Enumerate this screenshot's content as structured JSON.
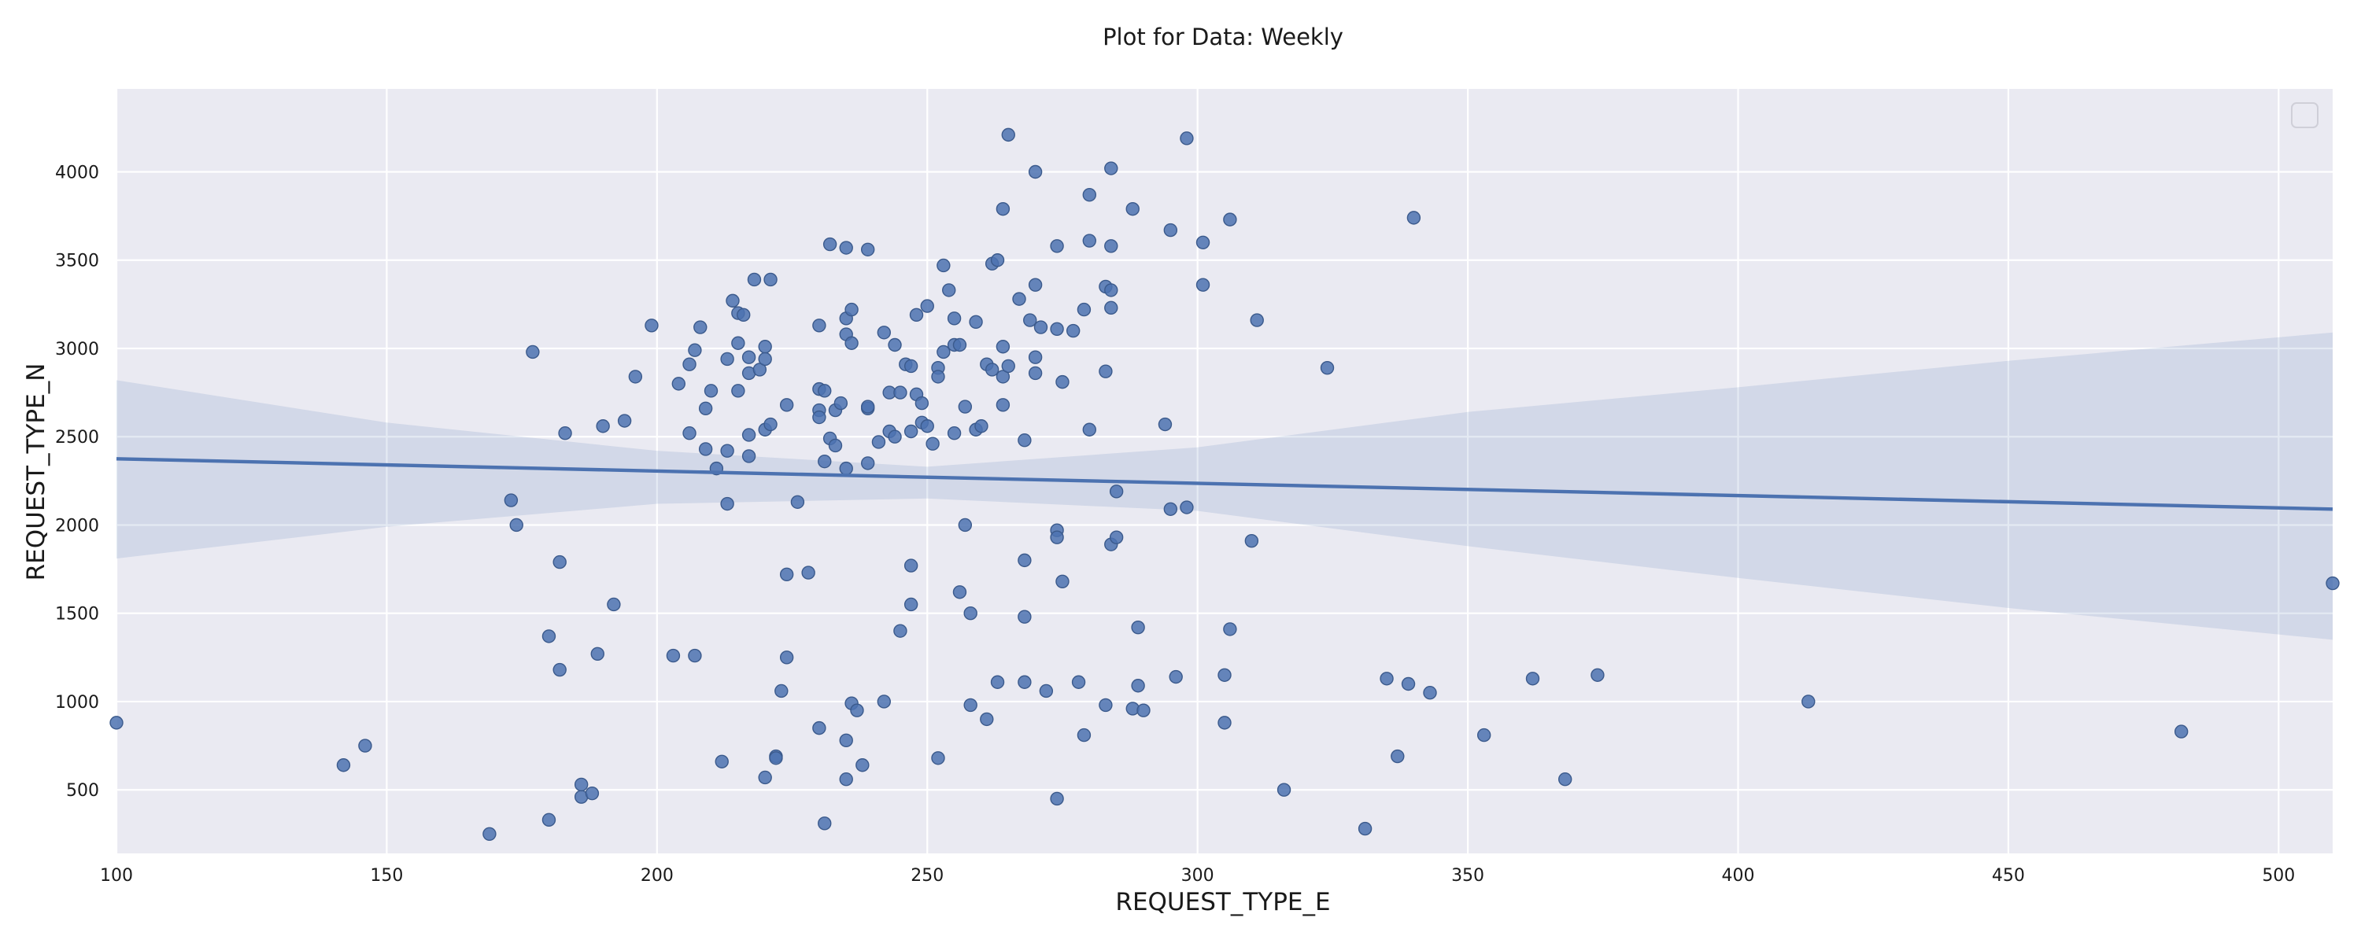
{
  "chart_data": {
    "type": "scatter",
    "title": "Plot for Data: Weekly",
    "xlabel": "REQUEST_TYPE_E",
    "ylabel": "REQUEST_TYPE_N",
    "xlim": [
      100,
      510
    ],
    "ylim": [
      140,
      4470
    ],
    "xticks": [
      100,
      150,
      200,
      250,
      300,
      350,
      400,
      450,
      500
    ],
    "yticks": [
      500,
      1000,
      1500,
      2000,
      2500,
      3000,
      3500,
      4000
    ],
    "grid": true,
    "legend": "top-right (empty)",
    "colors": {
      "points": "#4c72b0",
      "background": "#eaeaf2",
      "grid": "#ffffff"
    },
    "regression": {
      "line": [
        [
          100,
          2375
        ],
        [
          510,
          2090
        ]
      ],
      "ci_upper": [
        [
          100,
          2820
        ],
        [
          150,
          2580
        ],
        [
          200,
          2420
        ],
        [
          250,
          2330
        ],
        [
          300,
          2440
        ],
        [
          350,
          2640
        ],
        [
          400,
          2780
        ],
        [
          450,
          2930
        ],
        [
          510,
          3090
        ]
      ],
      "ci_lower": [
        [
          100,
          1810
        ],
        [
          150,
          1990
        ],
        [
          200,
          2120
        ],
        [
          250,
          2150
        ],
        [
          300,
          2080
        ],
        [
          350,
          1880
        ],
        [
          400,
          1700
        ],
        [
          450,
          1530
        ],
        [
          510,
          1350
        ]
      ]
    },
    "points": [
      [
        100,
        880
      ],
      [
        142,
        640
      ],
      [
        146,
        750
      ],
      [
        169,
        250
      ],
      [
        173,
        2140
      ],
      [
        174,
        2000
      ],
      [
        177,
        2980
      ],
      [
        180,
        1370
      ],
      [
        180,
        330
      ],
      [
        182,
        1790
      ],
      [
        182,
        1180
      ],
      [
        183,
        2520
      ],
      [
        186,
        460
      ],
      [
        186,
        530
      ],
      [
        188,
        480
      ],
      [
        189,
        1270
      ],
      [
        190,
        2560
      ],
      [
        192,
        1550
      ],
      [
        194,
        2590
      ],
      [
        196,
        2840
      ],
      [
        199,
        3130
      ],
      [
        203,
        1260
      ],
      [
        204,
        2800
      ],
      [
        206,
        2520
      ],
      [
        206,
        2910
      ],
      [
        207,
        2990
      ],
      [
        207,
        1260
      ],
      [
        208,
        3120
      ],
      [
        209,
        2430
      ],
      [
        209,
        2660
      ],
      [
        210,
        2760
      ],
      [
        211,
        2320
      ],
      [
        212,
        660
      ],
      [
        213,
        2120
      ],
      [
        213,
        2420
      ],
      [
        213,
        2940
      ],
      [
        214,
        3270
      ],
      [
        215,
        3030
      ],
      [
        215,
        2760
      ],
      [
        215,
        3200
      ],
      [
        216,
        3190
      ],
      [
        217,
        2950
      ],
      [
        217,
        2860
      ],
      [
        217,
        2510
      ],
      [
        217,
        2390
      ],
      [
        218,
        3390
      ],
      [
        219,
        2880
      ],
      [
        220,
        3010
      ],
      [
        220,
        2940
      ],
      [
        220,
        2540
      ],
      [
        220,
        570
      ],
      [
        221,
        3390
      ],
      [
        221,
        2570
      ],
      [
        222,
        690
      ],
      [
        222,
        680
      ],
      [
        223,
        1060
      ],
      [
        224,
        1250
      ],
      [
        224,
        1720
      ],
      [
        224,
        2680
      ],
      [
        226,
        2130
      ],
      [
        228,
        1730
      ],
      [
        230,
        3130
      ],
      [
        230,
        2770
      ],
      [
        230,
        2650
      ],
      [
        230,
        2610
      ],
      [
        230,
        850
      ],
      [
        231,
        2760
      ],
      [
        231,
        2360
      ],
      [
        231,
        310
      ],
      [
        232,
        2490
      ],
      [
        232,
        3590
      ],
      [
        233,
        2650
      ],
      [
        233,
        2450
      ],
      [
        234,
        2690
      ],
      [
        235,
        3570
      ],
      [
        235,
        3080
      ],
      [
        235,
        3170
      ],
      [
        235,
        2320
      ],
      [
        235,
        780
      ],
      [
        235,
        560
      ],
      [
        236,
        3030
      ],
      [
        236,
        3220
      ],
      [
        236,
        990
      ],
      [
        237,
        950
      ],
      [
        238,
        640
      ],
      [
        239,
        3560
      ],
      [
        239,
        2660
      ],
      [
        239,
        2670
      ],
      [
        239,
        2350
      ],
      [
        241,
        2470
      ],
      [
        242,
        3090
      ],
      [
        242,
        1000
      ],
      [
        243,
        2750
      ],
      [
        243,
        2530
      ],
      [
        244,
        3020
      ],
      [
        244,
        2500
      ],
      [
        245,
        2750
      ],
      [
        245,
        1400
      ],
      [
        246,
        2910
      ],
      [
        247,
        2900
      ],
      [
        247,
        2530
      ],
      [
        247,
        1770
      ],
      [
        247,
        1550
      ],
      [
        248,
        3190
      ],
      [
        248,
        2740
      ],
      [
        249,
        2580
      ],
      [
        249,
        2690
      ],
      [
        250,
        3240
      ],
      [
        250,
        2560
      ],
      [
        251,
        2460
      ],
      [
        252,
        2890
      ],
      [
        252,
        2840
      ],
      [
        252,
        680
      ],
      [
        253,
        3470
      ],
      [
        253,
        2980
      ],
      [
        254,
        3330
      ],
      [
        255,
        3170
      ],
      [
        255,
        3020
      ],
      [
        255,
        2520
      ],
      [
        256,
        3020
      ],
      [
        256,
        1620
      ],
      [
        257,
        2670
      ],
      [
        257,
        2000
      ],
      [
        258,
        1500
      ],
      [
        258,
        980
      ],
      [
        259,
        3150
      ],
      [
        259,
        2540
      ],
      [
        260,
        2560
      ],
      [
        261,
        2910
      ],
      [
        261,
        900
      ],
      [
        262,
        3480
      ],
      [
        262,
        2880
      ],
      [
        263,
        3500
      ],
      [
        263,
        1110
      ],
      [
        264,
        3790
      ],
      [
        264,
        3010
      ],
      [
        264,
        2840
      ],
      [
        264,
        2680
      ],
      [
        265,
        4210
      ],
      [
        265,
        2900
      ],
      [
        267,
        3280
      ],
      [
        268,
        2480
      ],
      [
        268,
        1800
      ],
      [
        268,
        1480
      ],
      [
        268,
        1110
      ],
      [
        269,
        3160
      ],
      [
        270,
        4000
      ],
      [
        270,
        3360
      ],
      [
        270,
        2950
      ],
      [
        270,
        2860
      ],
      [
        271,
        3120
      ],
      [
        272,
        1060
      ],
      [
        274,
        3580
      ],
      [
        274,
        3110
      ],
      [
        274,
        1970
      ],
      [
        274,
        1930
      ],
      [
        274,
        450
      ],
      [
        275,
        2810
      ],
      [
        275,
        1680
      ],
      [
        277,
        3100
      ],
      [
        278,
        1110
      ],
      [
        279,
        3220
      ],
      [
        279,
        810
      ],
      [
        280,
        3870
      ],
      [
        280,
        3610
      ],
      [
        280,
        2540
      ],
      [
        283,
        3350
      ],
      [
        283,
        2870
      ],
      [
        283,
        980
      ],
      [
        284,
        4020
      ],
      [
        284,
        3580
      ],
      [
        284,
        3330
      ],
      [
        284,
        3230
      ],
      [
        284,
        1890
      ],
      [
        285,
        2190
      ],
      [
        285,
        1930
      ],
      [
        288,
        3790
      ],
      [
        288,
        960
      ],
      [
        289,
        1420
      ],
      [
        289,
        1090
      ],
      [
        290,
        950
      ],
      [
        294,
        2570
      ],
      [
        295,
        3670
      ],
      [
        295,
        2090
      ],
      [
        296,
        1140
      ],
      [
        298,
        4190
      ],
      [
        298,
        2100
      ],
      [
        301,
        3600
      ],
      [
        301,
        3360
      ],
      [
        305,
        1150
      ],
      [
        305,
        880
      ],
      [
        306,
        3730
      ],
      [
        306,
        1410
      ],
      [
        310,
        1910
      ],
      [
        311,
        3160
      ],
      [
        316,
        500
      ],
      [
        324,
        2890
      ],
      [
        331,
        280
      ],
      [
        335,
        1130
      ],
      [
        337,
        690
      ],
      [
        339,
        1100
      ],
      [
        340,
        3740
      ],
      [
        343,
        1050
      ],
      [
        353,
        810
      ],
      [
        362,
        1130
      ],
      [
        368,
        560
      ],
      [
        374,
        1150
      ],
      [
        413,
        1000
      ],
      [
        482,
        830
      ],
      [
        510,
        1670
      ]
    ]
  }
}
